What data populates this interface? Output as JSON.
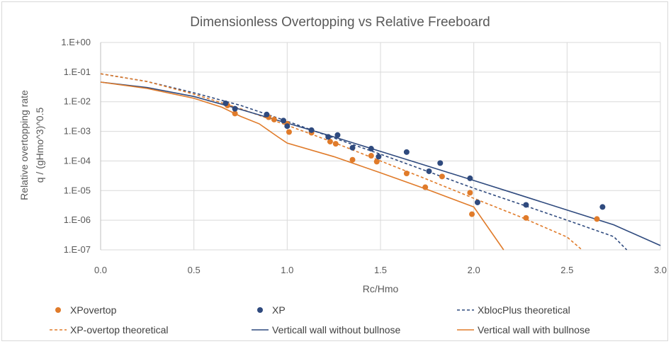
{
  "chart_data": {
    "type": "scatter",
    "title": "Dimensionless Overtopping vs Relative Freeboard",
    "xlabel": "Rc/Hmo",
    "ylabel_lines": [
      "Relative overtopping rate",
      "q / (gHmo^3)^0.5"
    ],
    "xlim": [
      0.0,
      3.0
    ],
    "ylim": [
      1e-07,
      1.0
    ],
    "yscale": "log",
    "grid": true,
    "legend_position": "bottom",
    "x_ticks": [
      {
        "value": 0.0,
        "label": "0.0"
      },
      {
        "value": 0.5,
        "label": "0.5"
      },
      {
        "value": 1.0,
        "label": "1.0"
      },
      {
        "value": 1.5,
        "label": "1.5"
      },
      {
        "value": 2.0,
        "label": "2.0"
      },
      {
        "value": 2.5,
        "label": "2.5"
      },
      {
        "value": 3.0,
        "label": "3.0"
      }
    ],
    "y_ticks": [
      {
        "value": 1.0,
        "label": "1.E+00"
      },
      {
        "value": 0.1,
        "label": "1.E-01"
      },
      {
        "value": 0.01,
        "label": "1.E-02"
      },
      {
        "value": 0.001,
        "label": "1.E-03"
      },
      {
        "value": 0.0001,
        "label": "1.E-04"
      },
      {
        "value": 1e-05,
        "label": "1.E-05"
      },
      {
        "value": 1e-06,
        "label": "1.E-06"
      },
      {
        "value": 1e-07,
        "label": "1.E-07"
      }
    ],
    "colors": {
      "orange": "#e07b2a",
      "blue": "#2f4a7e"
    },
    "series": [
      {
        "name": "XPovertop",
        "kind": "points",
        "color": "#e07b2a",
        "points": [
          [
            0.68,
            0.0075
          ],
          [
            0.72,
            0.004
          ],
          [
            0.9,
            0.003
          ],
          [
            0.93,
            0.0025
          ],
          [
            1.0,
            0.0018
          ],
          [
            1.01,
            0.00095
          ],
          [
            1.13,
            0.0009
          ],
          [
            1.23,
            0.00045
          ],
          [
            1.26,
            0.00038
          ],
          [
            1.35,
            0.00011
          ],
          [
            1.45,
            0.00015
          ],
          [
            1.48,
            9.5e-05
          ],
          [
            1.64,
            3.8e-05
          ],
          [
            1.74,
            1.3e-05
          ],
          [
            1.83,
            3e-05
          ],
          [
            1.98,
            8.5e-06
          ],
          [
            1.99,
            1.6e-06
          ],
          [
            2.28,
            1.2e-06
          ],
          [
            2.66,
            1.1e-06
          ]
        ]
      },
      {
        "name": "XP",
        "kind": "points",
        "color": "#2f4a7e",
        "points": [
          [
            0.67,
            0.0088
          ],
          [
            0.72,
            0.0058
          ],
          [
            0.89,
            0.0037
          ],
          [
            0.98,
            0.0023
          ],
          [
            1.0,
            0.0015
          ],
          [
            1.13,
            0.0011
          ],
          [
            1.22,
            0.00065
          ],
          [
            1.27,
            0.00075
          ],
          [
            1.35,
            0.00028
          ],
          [
            1.45,
            0.00026
          ],
          [
            1.49,
            0.00014
          ],
          [
            1.64,
            0.0002
          ],
          [
            1.76,
            4.5e-05
          ],
          [
            1.82,
            8.5e-05
          ],
          [
            1.98,
            2.6e-05
          ],
          [
            2.02,
            4e-06
          ],
          [
            2.28,
            3.3e-06
          ],
          [
            2.69,
            2.8e-06
          ]
        ]
      },
      {
        "name": "XblocPlus theoretical",
        "kind": "line",
        "dash": true,
        "color": "#2f4a7e",
        "points": [
          [
            0.0,
            0.088
          ],
          [
            0.25,
            0.048
          ],
          [
            0.5,
            0.02
          ],
          [
            0.75,
            0.0075
          ],
          [
            1.0,
            0.0022
          ],
          [
            1.25,
            0.0006
          ],
          [
            1.5,
            0.00017
          ],
          [
            1.75,
            4.5e-05
          ],
          [
            2.0,
            1.2e-05
          ],
          [
            2.25,
            3.5e-06
          ],
          [
            2.5,
            1e-06
          ],
          [
            2.75,
            2.8e-07
          ],
          [
            2.82,
            1e-07
          ]
        ]
      },
      {
        "name": "XP-overtop theoretical",
        "kind": "line",
        "dash": true,
        "color": "#e07b2a",
        "points": [
          [
            0.0,
            0.088
          ],
          [
            0.25,
            0.048
          ],
          [
            0.5,
            0.018
          ],
          [
            0.75,
            0.0058
          ],
          [
            1.0,
            0.0016
          ],
          [
            1.25,
            0.00042
          ],
          [
            1.5,
            0.0001
          ],
          [
            1.75,
            2.4e-05
          ],
          [
            2.0,
            5.5e-06
          ],
          [
            2.25,
            1.3e-06
          ],
          [
            2.5,
            2.7e-07
          ],
          [
            2.58,
            1e-07
          ]
        ]
      },
      {
        "name": "Verticall wall without bullnose",
        "kind": "line",
        "dash": false,
        "color": "#2f4a7e",
        "points": [
          [
            0.0,
            0.046
          ],
          [
            0.25,
            0.03
          ],
          [
            0.5,
            0.015
          ],
          [
            0.75,
            0.0055
          ],
          [
            1.0,
            0.0019
          ],
          [
            1.25,
            0.00065
          ],
          [
            1.5,
            0.00021
          ],
          [
            1.75,
            6.8e-05
          ],
          [
            2.0,
            2.2e-05
          ],
          [
            2.25,
            7e-06
          ],
          [
            2.5,
            2.2e-06
          ],
          [
            2.75,
            7e-07
          ],
          [
            3.0,
            1.4e-07
          ]
        ]
      },
      {
        "name": "Vertical wall with bullnose",
        "kind": "line",
        "dash": false,
        "color": "#e07b2a",
        "points": [
          [
            0.0,
            0.046
          ],
          [
            0.25,
            0.028
          ],
          [
            0.5,
            0.013
          ],
          [
            0.65,
            0.0065
          ],
          [
            0.75,
            0.0032
          ],
          [
            0.85,
            0.0018
          ],
          [
            0.95,
            0.00065
          ],
          [
            1.0,
            0.0004
          ],
          [
            1.25,
            0.00014
          ],
          [
            1.5,
            4e-05
          ],
          [
            1.75,
            1.1e-05
          ],
          [
            2.0,
            2.8e-06
          ],
          [
            2.16,
            1e-07
          ]
        ]
      }
    ]
  }
}
